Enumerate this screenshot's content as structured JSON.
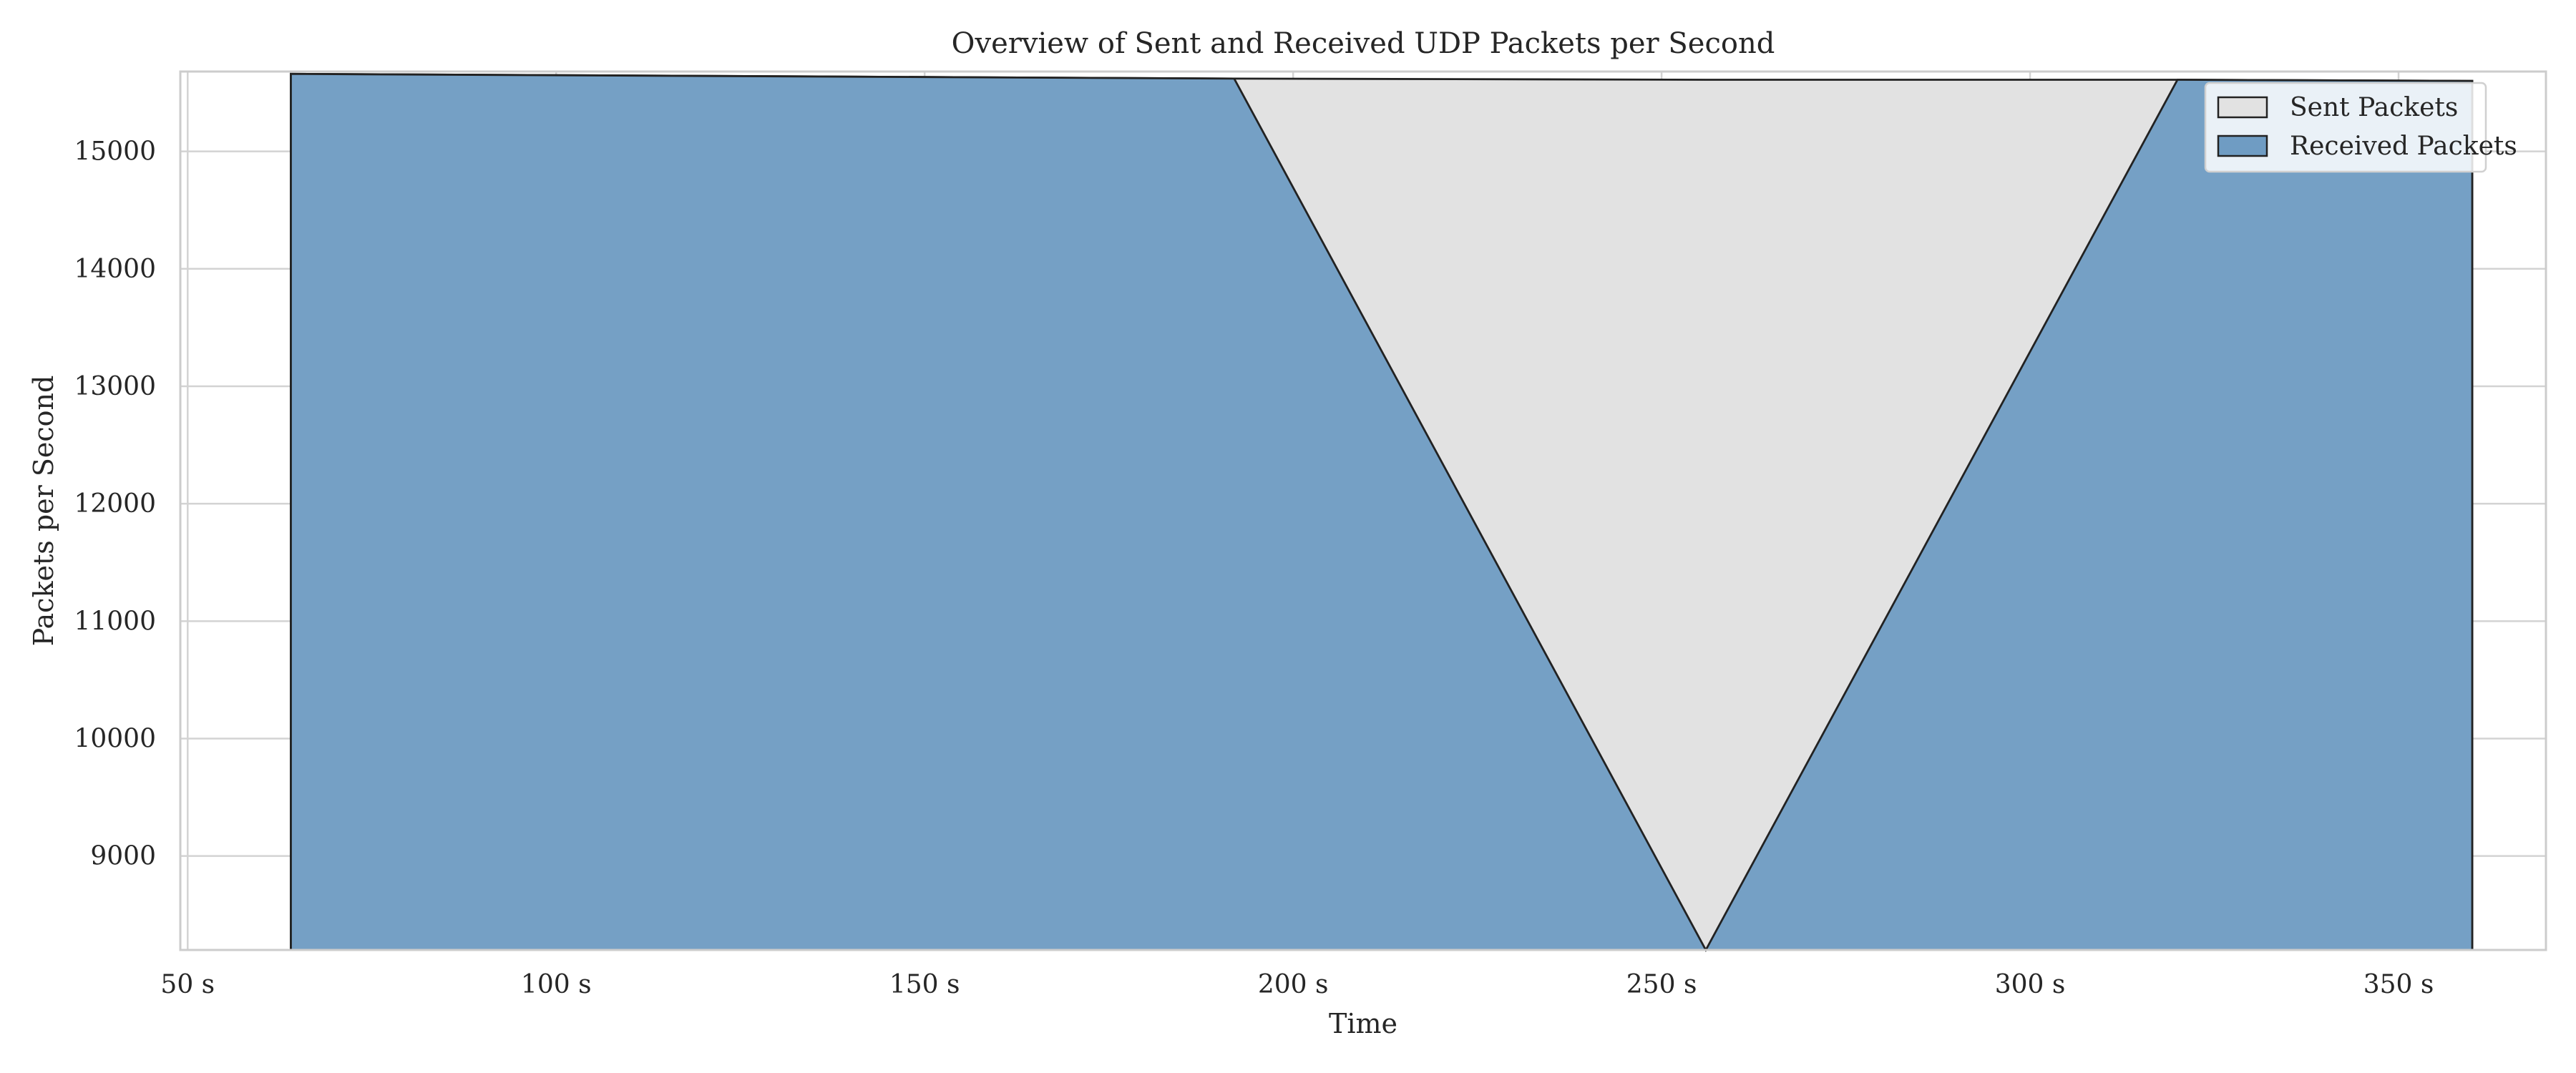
{
  "chart_data": {
    "type": "area",
    "title": "Overview of Sent and Received UDP Packets per Second",
    "xlabel": "Time",
    "ylabel": "Packets per Second",
    "x_unit_suffix": " s",
    "xlim": [
      49,
      370
    ],
    "ylim": [
      8200,
      15680
    ],
    "x_ticks": [
      50,
      100,
      150,
      200,
      250,
      300,
      350
    ],
    "x_tick_labels": [
      "50 s",
      "100 s",
      "150 s",
      "200 s",
      "250 s",
      "300 s",
      "350 s"
    ],
    "y_ticks": [
      9000,
      10000,
      11000,
      12000,
      13000,
      14000,
      15000
    ],
    "y_tick_labels": [
      "9000",
      "10000",
      "11000",
      "12000",
      "13000",
      "14000",
      "15000"
    ],
    "grid": true,
    "legend_position": "top-right",
    "series": [
      {
        "name": "Sent Packets",
        "color": "#e2e2e2",
        "x": [
          64,
          192,
          256,
          320,
          360
        ],
        "values": [
          15660,
          15620,
          15610,
          15610,
          15600
        ]
      },
      {
        "name": "Received Packets",
        "color": "#6f9cc3",
        "x": [
          64,
          192,
          256,
          320,
          360
        ],
        "values": [
          15660,
          15620,
          8200,
          15610,
          15600
        ]
      }
    ]
  }
}
